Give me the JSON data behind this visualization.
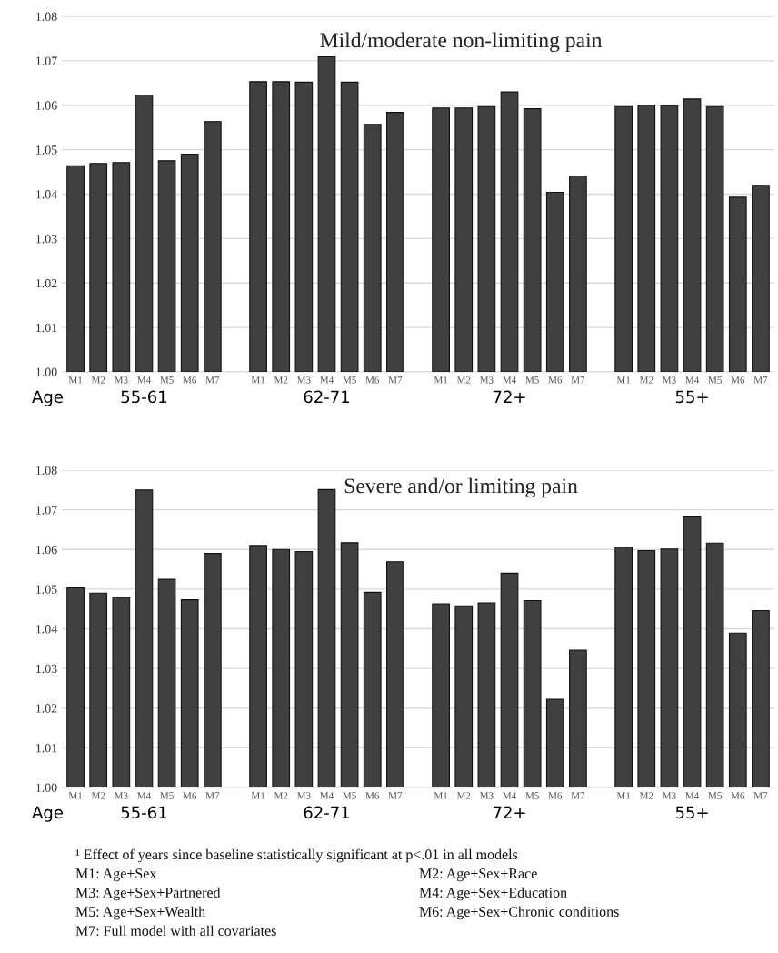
{
  "chart_data": [
    {
      "type": "bar",
      "title": "Mild/moderate non-limiting pain",
      "categories": [
        "M1",
        "M2",
        "M3",
        "M4",
        "M5",
        "M6",
        "M7",
        null,
        "M1",
        "M2",
        "M3",
        "M4",
        "M5",
        "M6",
        "M7",
        null,
        "M1",
        "M2",
        "M3",
        "M4",
        "M5",
        "M6",
        "M7",
        null,
        "M1",
        "M2",
        "M3",
        "M4",
        "M5",
        "M6",
        "M7"
      ],
      "values": [
        1.0464,
        1.0469,
        1.0471,
        1.0623,
        1.0475,
        1.049,
        1.0563,
        null,
        1.0653,
        1.0653,
        1.0652,
        1.0709,
        1.0652,
        1.0557,
        1.0584,
        null,
        1.0594,
        1.0594,
        1.0597,
        1.063,
        1.0592,
        1.0404,
        1.0441,
        null,
        1.0597,
        1.06,
        1.0599,
        1.0614,
        1.0597,
        1.0393,
        1.042
      ],
      "color": "#404040",
      "ylim": [
        1.0,
        1.08
      ],
      "yticks": [
        {
          "value": 1.0,
          "label": "1.00"
        },
        {
          "value": 1.01,
          "label": "1.01"
        },
        {
          "value": 1.02,
          "label": "1.02"
        },
        {
          "value": 1.03,
          "label": "1.03"
        },
        {
          "value": 1.04,
          "label": "1.04"
        },
        {
          "value": 1.05,
          "label": "1.05"
        },
        {
          "value": 1.06,
          "label": "1.06"
        },
        {
          "value": 1.07,
          "label": "1.07"
        },
        {
          "value": 1.08,
          "label": "1.08"
        }
      ],
      "grid": "y",
      "annotations": [
        "Age",
        "55-61",
        "62-71",
        "72+",
        "55+"
      ]
    },
    {
      "type": "bar",
      "title": "Severe and/or limiting pain",
      "categories": [
        "M1",
        "M2",
        "M3",
        "M4",
        "M5",
        "M6",
        "M7",
        null,
        "M1",
        "M2",
        "M3",
        "M4",
        "M5",
        "M6",
        "M7",
        null,
        "M1",
        "M2",
        "M3",
        "M4",
        "M5",
        "M6",
        "M7",
        null,
        "M1",
        "M2",
        "M3",
        "M4",
        "M5",
        "M6",
        "M7"
      ],
      "values": [
        1.0503,
        1.049,
        1.0479,
        1.075,
        1.0525,
        1.0473,
        1.059,
        null,
        1.061,
        1.06,
        1.0595,
        1.0751,
        1.0617,
        1.0492,
        1.0569,
        null,
        1.0463,
        1.0458,
        1.0465,
        1.054,
        1.0471,
        1.0222,
        1.0346,
        null,
        1.0606,
        1.0597,
        1.0601,
        1.0684,
        1.0616,
        1.0389,
        1.0446
      ],
      "color": "#404040",
      "ylim": [
        1.0,
        1.08
      ],
      "yticks": [
        {
          "value": 1.0,
          "label": "1.00"
        },
        {
          "value": 1.01,
          "label": "1.01"
        },
        {
          "value": 1.02,
          "label": "1.02"
        },
        {
          "value": 1.03,
          "label": "1.03"
        },
        {
          "value": 1.04,
          "label": "1.04"
        },
        {
          "value": 1.05,
          "label": "1.05"
        },
        {
          "value": 1.06,
          "label": "1.06"
        },
        {
          "value": 1.07,
          "label": "1.07"
        },
        {
          "value": 1.08,
          "label": "1.08"
        }
      ],
      "grid": "y",
      "annotations": [
        "Age",
        "55-61",
        "62-71",
        "72+",
        "55+",
        "¹ Effect of years since baseline statistically significant at p<.01 in all models",
        "M1: Age+Sex",
        "M2: Age+Sex+Race",
        "M3: Age+Sex+Partnered",
        "M4: Age+Sex+Education",
        "M5: Age+Sex+Wealth",
        "M6: Age+Sex+Chronic conditions",
        "M7: Full model with all covariates"
      ]
    }
  ]
}
